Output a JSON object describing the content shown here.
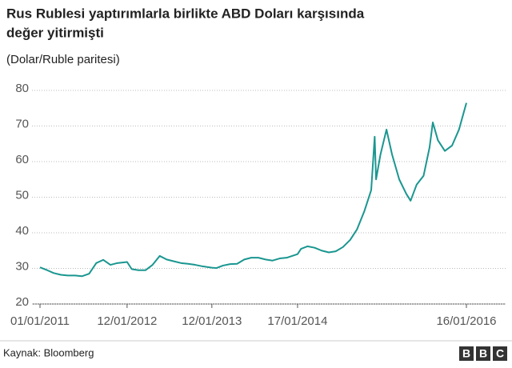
{
  "chart_data": {
    "type": "line",
    "title": [
      "Rus Rublesi yaptırımlarla birlikte ABD Doları karşısında",
      "değer yitirmişti"
    ],
    "subtitle": "(Dolar/Ruble paritesi)",
    "source": "Kaynak: Bloomberg",
    "logo": [
      "B",
      "B",
      "C"
    ],
    "color": "#1a9690",
    "grid": true,
    "x": [
      "2011-01-01",
      "2011-02-01",
      "2011-03-01",
      "2011-04-01",
      "2011-05-01",
      "2011-06-01",
      "2011-07-01",
      "2011-08-01",
      "2011-09-01",
      "2011-10-01",
      "2011-11-01",
      "2011-12-01",
      "2012-01-12",
      "2012-02-01",
      "2012-03-01",
      "2012-04-01",
      "2012-05-01",
      "2012-06-01",
      "2012-07-01",
      "2012-08-01",
      "2012-09-01",
      "2012-10-01",
      "2012-11-01",
      "2012-12-01",
      "2013-01-12",
      "2013-02-01",
      "2013-03-01",
      "2013-04-01",
      "2013-05-01",
      "2013-06-01",
      "2013-07-01",
      "2013-08-01",
      "2013-09-01",
      "2013-10-01",
      "2013-11-01",
      "2013-12-01",
      "2014-01-17",
      "2014-02-01",
      "2014-03-01",
      "2014-04-01",
      "2014-05-01",
      "2014-06-01",
      "2014-07-01",
      "2014-08-01",
      "2014-09-01",
      "2014-10-01",
      "2014-11-01",
      "2014-12-01",
      "2014-12-16",
      "2014-12-22",
      "2015-01-10",
      "2015-02-05",
      "2015-03-01",
      "2015-04-01",
      "2015-05-01",
      "2015-05-20",
      "2015-06-15",
      "2015-07-15",
      "2015-08-10",
      "2015-08-24",
      "2015-09-15",
      "2015-10-15",
      "2015-11-15",
      "2015-12-15",
      "2016-01-16"
    ],
    "values": [
      30.3,
      29.5,
      28.7,
      28.2,
      28.0,
      28.0,
      27.8,
      28.5,
      31.5,
      32.4,
      31.0,
      31.5,
      31.8,
      29.8,
      29.5,
      29.5,
      31.0,
      33.5,
      32.5,
      32.0,
      31.5,
      31.3,
      31.0,
      30.6,
      30.2,
      30.1,
      30.8,
      31.2,
      31.3,
      32.5,
      33.0,
      33.0,
      32.5,
      32.2,
      32.8,
      33.0,
      34.0,
      35.5,
      36.2,
      35.8,
      35.0,
      34.5,
      34.8,
      36.0,
      38.0,
      41.0,
      46.0,
      52.0,
      67.0,
      55.0,
      62.0,
      69.0,
      62.0,
      55.0,
      51.0,
      49.0,
      53.5,
      56.0,
      64.0,
      71.0,
      66.0,
      63.0,
      64.5,
      69.0,
      76.5
    ],
    "xlim": [
      "2011-01-01",
      "2016-01-16"
    ],
    "xticks": [
      {
        "value": "2011-01-01",
        "label": "01/01/2011"
      },
      {
        "value": "2012-01-12",
        "label": "12/01/2012"
      },
      {
        "value": "2013-01-12",
        "label": "12/01/2013"
      },
      {
        "value": "2014-01-17",
        "label": "17/01/2014"
      },
      {
        "value": "2016-01-16",
        "label": "16/01/2016"
      }
    ],
    "ylim": [
      20,
      80
    ],
    "yticks": [
      20,
      30,
      40,
      50,
      60,
      70,
      80
    ]
  }
}
